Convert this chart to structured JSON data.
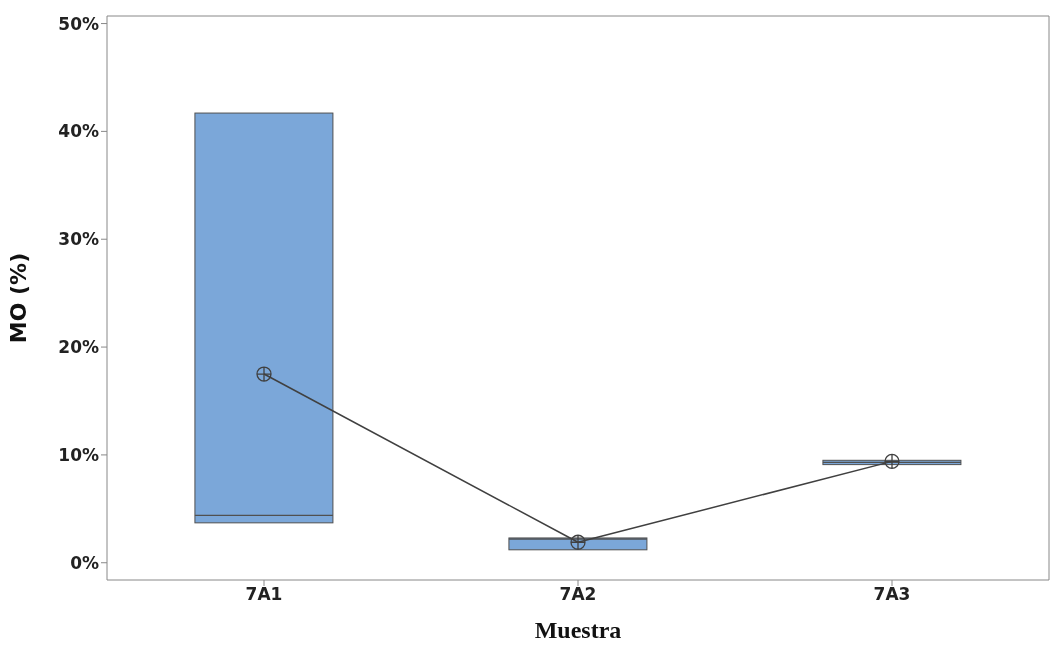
{
  "chart_data": {
    "type": "box",
    "xlabel": "Muestra",
    "ylabel": "MO (%)",
    "categories": [
      "7A1",
      "7A2",
      "7A3"
    ],
    "boxes": [
      {
        "low": 3.7,
        "q1": 3.7,
        "median": 4.4,
        "q3": 41.7,
        "high": 41.7
      },
      {
        "low": 1.2,
        "q1": 1.2,
        "median": 2.2,
        "q3": 2.3,
        "high": 2.3
      },
      {
        "low": 9.1,
        "q1": 9.1,
        "median": 9.3,
        "q3": 9.5,
        "high": 9.5
      }
    ],
    "color": "#7ba7d9",
    "series": [
      {
        "type": "line",
        "values": [
          17.5,
          1.9,
          9.4
        ],
        "color": "#404040"
      }
    ],
    "marker": "cross",
    "ylim": [
      -1.6,
      50.7
    ],
    "yticks": [
      {
        "value": 0,
        "label": "0%"
      },
      {
        "value": 10,
        "label": "10%"
      },
      {
        "value": 20,
        "label": "20%"
      },
      {
        "value": 30,
        "label": "30%"
      },
      {
        "value": 40,
        "label": "40%"
      },
      {
        "value": 50,
        "label": "50%"
      }
    ],
    "grid": false,
    "legend": false
  }
}
